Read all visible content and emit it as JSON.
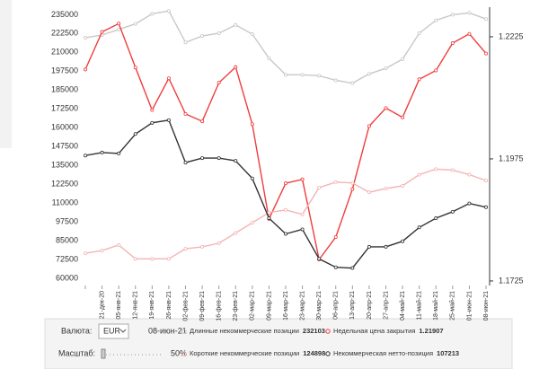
{
  "chart_data": {
    "type": "line",
    "categories": [
      null,
      "21-дек-20",
      "05-янв-21",
      "12-янв-21",
      "19-янв-21",
      "26-янв-21",
      "02-фев-21",
      "09-фев-21",
      "16-фев-21",
      "23-фев-21",
      "02-мар-21",
      "09-мар-21",
      "16-мар-21",
      "23-мар-21",
      "30-мар-21",
      "06-апр-21",
      "13-апр-21",
      "20-апр-21",
      "27-апр-21",
      "04-май-21",
      "11-май-21",
      "18-май-21",
      "25-май-21",
      "01-июн-21",
      "08-июн-21"
    ],
    "series": [
      {
        "name": "Длинные некоммерческие позиции",
        "color": "#c8c8c8",
        "values": [
          219700,
          221500,
          225200,
          228900,
          235600,
          237500,
          216600,
          220900,
          222700,
          228200,
          222100,
          206100,
          195100,
          195100,
          194500,
          191400,
          189600,
          195700,
          199400,
          205500,
          222700,
          231300,
          235000,
          236200,
          232103
        ]
      },
      {
        "name": "Недельная цена закрытия",
        "color": "#f03c3c",
        "axis": "y2",
        "values": [
          1.2158,
          1.2235,
          1.2252,
          1.2162,
          1.2075,
          1.214,
          1.2067,
          1.2052,
          1.2131,
          1.2163,
          1.2046,
          1.1852,
          1.1925,
          1.1933,
          1.1769,
          1.1815,
          1.1913,
          1.2042,
          1.2079,
          1.206,
          1.2138,
          1.2156,
          1.2212,
          1.2231,
          1.21907
        ]
      },
      {
        "name": "Короткие некоммерческие позиции",
        "color": "#f5b4b4",
        "values": [
          76600,
          78400,
          82100,
          72900,
          72900,
          72900,
          79600,
          80900,
          83300,
          90100,
          96900,
          103600,
          105400,
          102400,
          120200,
          123900,
          123300,
          117100,
          119600,
          121400,
          128800,
          132500,
          131800,
          128800,
          124898
        ]
      },
      {
        "name": "Некоммерческая нетто-позиция",
        "color": "#333333",
        "values": [
          141500,
          143500,
          142900,
          155800,
          163200,
          165000,
          136800,
          139800,
          139800,
          138000,
          126300,
          99900,
          89500,
          92500,
          72900,
          67300,
          66800,
          80900,
          80900,
          84600,
          93800,
          99900,
          104200,
          109700,
          107213
        ]
      }
    ],
    "ylim": [
      57000,
      240000
    ],
    "yticks": [
      60000,
      72500,
      85000,
      97500,
      110000,
      122500,
      135000,
      147500,
      160000,
      172500,
      185000,
      197500,
      210000,
      222500,
      235000
    ],
    "y2lim": [
      1.17212,
      1.22856
    ],
    "y2ticks": [
      1.1725,
      1.1975,
      1.2225
    ]
  },
  "controls": {
    "currency_label": "Валюта:",
    "currency": "EUR",
    "date": "08-июн-21",
    "scale_label": "Масштаб:",
    "scale": "50%"
  }
}
